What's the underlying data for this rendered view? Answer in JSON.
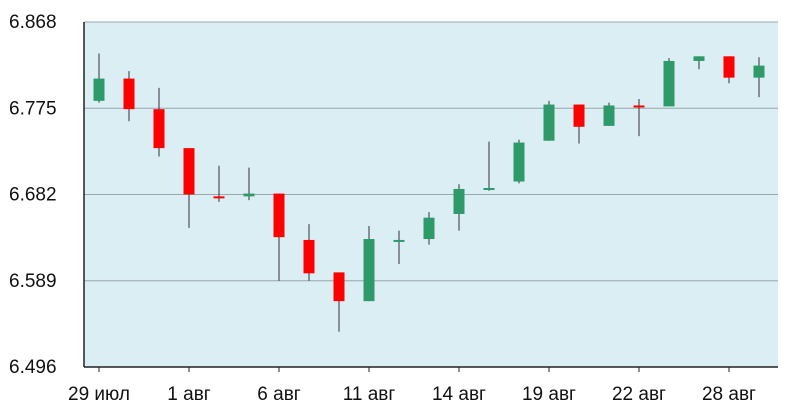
{
  "chart_data": {
    "type": "candlestick",
    "title": "",
    "xlabel": "",
    "ylabel": "",
    "ylim": [
      6.496,
      6.868
    ],
    "yticks": [
      "6.868",
      "6.775",
      "6.682",
      "6.589",
      "6.496"
    ],
    "xticks": [
      {
        "label": "29 июл",
        "index": 0
      },
      {
        "label": "1 авг",
        "index": 3
      },
      {
        "label": "6 авг",
        "index": 6
      },
      {
        "label": "11 авг",
        "index": 9
      },
      {
        "label": "14 авг",
        "index": 12
      },
      {
        "label": "19 авг",
        "index": 15
      },
      {
        "label": "22 авг",
        "index": 18
      },
      {
        "label": "28 авг",
        "index": 21
      }
    ],
    "grid": true,
    "colors": {
      "up": "#2e9a6a",
      "down": "#ff0000",
      "wick": "#333333",
      "background": "#dbeef4",
      "grid": "#9aa7ad",
      "axis": "#222222"
    },
    "candles": [
      {
        "open": 6.783,
        "high": 6.834,
        "low": 6.781,
        "close": 6.807
      },
      {
        "open": 6.807,
        "high": 6.815,
        "low": 6.761,
        "close": 6.774
      },
      {
        "open": 6.774,
        "high": 6.797,
        "low": 6.723,
        "close": 6.732
      },
      {
        "open": 6.732,
        "high": 6.732,
        "low": 6.646,
        "close": 6.682
      },
      {
        "open": 6.68,
        "high": 6.713,
        "low": 6.674,
        "close": 6.679
      },
      {
        "open": 6.68,
        "high": 6.711,
        "low": 6.676,
        "close": 6.683
      },
      {
        "open": 6.683,
        "high": 6.683,
        "low": 6.589,
        "close": 6.636
      },
      {
        "open": 6.633,
        "high": 6.65,
        "low": 6.589,
        "close": 6.597
      },
      {
        "open": 6.598,
        "high": 6.598,
        "low": 6.534,
        "close": 6.567
      },
      {
        "open": 6.567,
        "high": 6.648,
        "low": 6.567,
        "close": 6.634
      },
      {
        "open": 6.633,
        "high": 6.643,
        "low": 6.607,
        "close": 6.633
      },
      {
        "open": 6.634,
        "high": 6.663,
        "low": 6.628,
        "close": 6.657
      },
      {
        "open": 6.661,
        "high": 6.693,
        "low": 6.643,
        "close": 6.688
      },
      {
        "open": 6.687,
        "high": 6.739,
        "low": 6.686,
        "close": 6.689
      },
      {
        "open": 6.696,
        "high": 6.741,
        "low": 6.694,
        "close": 6.738
      },
      {
        "open": 6.74,
        "high": 6.783,
        "low": 6.74,
        "close": 6.779
      },
      {
        "open": 6.779,
        "high": 6.779,
        "low": 6.737,
        "close": 6.755
      },
      {
        "open": 6.756,
        "high": 6.781,
        "low": 6.756,
        "close": 6.778
      },
      {
        "open": 6.778,
        "high": 6.785,
        "low": 6.745,
        "close": 6.777
      },
      {
        "open": 6.777,
        "high": 6.829,
        "low": 6.777,
        "close": 6.826
      },
      {
        "open": 6.826,
        "high": 6.831,
        "low": 6.817,
        "close": 6.831
      },
      {
        "open": 6.831,
        "high": 6.831,
        "low": 6.802,
        "close": 6.808
      },
      {
        "open": 6.808,
        "high": 6.83,
        "low": 6.787,
        "close": 6.821
      }
    ]
  }
}
